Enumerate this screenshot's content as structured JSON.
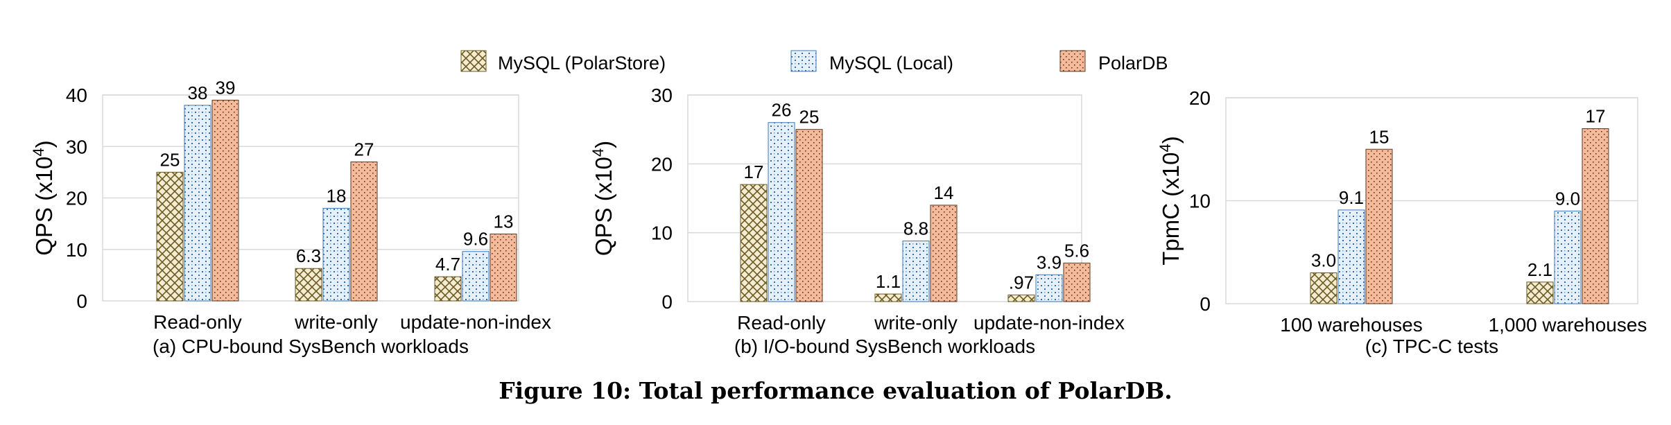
{
  "figure_caption": "Figure 10: Total performance evaluation of PolarDB.",
  "legend": [
    {
      "label": "MySQL (PolarStore)",
      "pattern": "crosshatch",
      "color": "#8a7a3a",
      "fill": "#f3ecd2"
    },
    {
      "label": "MySQL (Local)",
      "pattern": "dots-blue",
      "color": "#3f78b8",
      "fill": "#e4eef9"
    },
    {
      "label": "PolarDB",
      "pattern": "dots-orange",
      "color": "#5a3a22",
      "fill": "#f6b999"
    }
  ],
  "chart_data": [
    {
      "type": "bar",
      "ylabel": "QPS (x10",
      "ylabel_sup": "4",
      "ylabel_end": ")",
      "ylim": [
        0,
        40
      ],
      "yticks": [
        "0",
        "10",
        "20",
        "30",
        "40"
      ],
      "categories": [
        "Read-only",
        "write-only",
        "update-non-index"
      ],
      "series": [
        {
          "name": "MySQL (PolarStore)",
          "values": [
            25,
            6.3,
            4.7
          ],
          "labels": [
            "25",
            "6.3",
            "4.7"
          ]
        },
        {
          "name": "MySQL (Local)",
          "values": [
            38,
            18,
            9.6
          ],
          "labels": [
            "38",
            "18",
            "9.6"
          ]
        },
        {
          "name": "PolarDB",
          "values": [
            39,
            27,
            13
          ],
          "labels": [
            "39",
            "27",
            "13"
          ]
        }
      ],
      "subtitle": "(a) CPU-bound SysBench workloads",
      "grid": true,
      "legend": "top-center"
    },
    {
      "type": "bar",
      "ylabel": "QPS (x10",
      "ylabel_sup": "4",
      "ylabel_end": ")",
      "ylim": [
        0,
        30
      ],
      "yticks": [
        "0",
        "10",
        "20",
        "30"
      ],
      "categories": [
        "Read-only",
        "write-only",
        "update-non-index"
      ],
      "series": [
        {
          "name": "MySQL (PolarStore)",
          "values": [
            17,
            1.1,
            0.97
          ],
          "labels": [
            "17",
            "1.1",
            ".97"
          ]
        },
        {
          "name": "MySQL (Local)",
          "values": [
            26,
            8.8,
            3.9
          ],
          "labels": [
            "26",
            "8.8",
            "3.9"
          ]
        },
        {
          "name": "PolarDB",
          "values": [
            25,
            14,
            5.6
          ],
          "labels": [
            "25",
            "14",
            "5.6"
          ]
        }
      ],
      "subtitle": "(b) I/O-bound SysBench workloads",
      "grid": true,
      "legend": "top-center"
    },
    {
      "type": "bar",
      "ylabel": "TpmC (x10",
      "ylabel_sup": "4",
      "ylabel_end": ")",
      "ylim": [
        0,
        20
      ],
      "yticks": [
        "0",
        "10",
        "20"
      ],
      "categories": [
        "100 warehouses",
        "1,000 warehouses"
      ],
      "series": [
        {
          "name": "MySQL (PolarStore)",
          "values": [
            3.0,
            2.1
          ],
          "labels": [
            "3.0",
            "2.1"
          ]
        },
        {
          "name": "MySQL (Local)",
          "values": [
            9.1,
            9.0
          ],
          "labels": [
            "9.1",
            "9.0"
          ]
        },
        {
          "name": "PolarDB",
          "values": [
            15,
            17
          ],
          "labels": [
            "15",
            "17"
          ]
        }
      ],
      "subtitle": "(c) TPC-C tests",
      "grid": true,
      "legend": "top-center"
    }
  ]
}
